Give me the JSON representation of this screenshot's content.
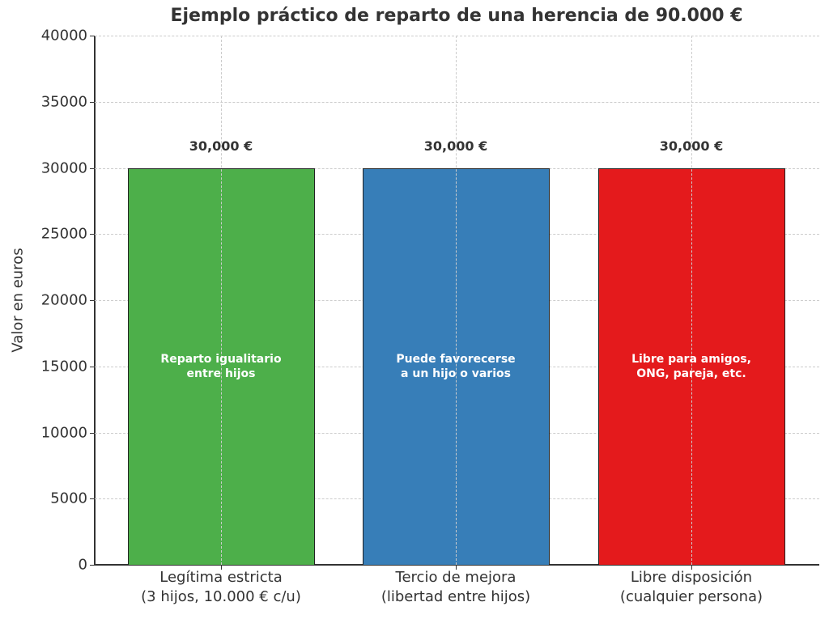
{
  "chart_data": {
    "type": "bar",
    "title": "Ejemplo práctico de reparto de una herencia de 90.000 €",
    "xlabel": "",
    "ylabel": "Valor en euros",
    "ylim": [
      0,
      40000
    ],
    "yticks": [
      "0",
      "5000",
      "10000",
      "15000",
      "20000",
      "25000",
      "30000",
      "35000",
      "40000"
    ],
    "grid": true,
    "categories": [
      "Legítima estricta\n(3 hijos, 10.000 € c/u)",
      "Tercio de mejora\n(libertad entre hijos)",
      "Libre disposición\n(cualquier persona)"
    ],
    "values": [
      30000,
      30000,
      30000
    ],
    "value_labels": [
      "30,000 €",
      "30,000 €",
      "30,000 €"
    ],
    "bar_annotations": [
      "Reparto igualitario\nentre hijos",
      "Puede favorecerse\na un hijo o varios",
      "Libre para amigos,\nONG, pareja, etc."
    ],
    "colors": [
      "#4daf4a",
      "#377eb8",
      "#e41a1c"
    ]
  }
}
